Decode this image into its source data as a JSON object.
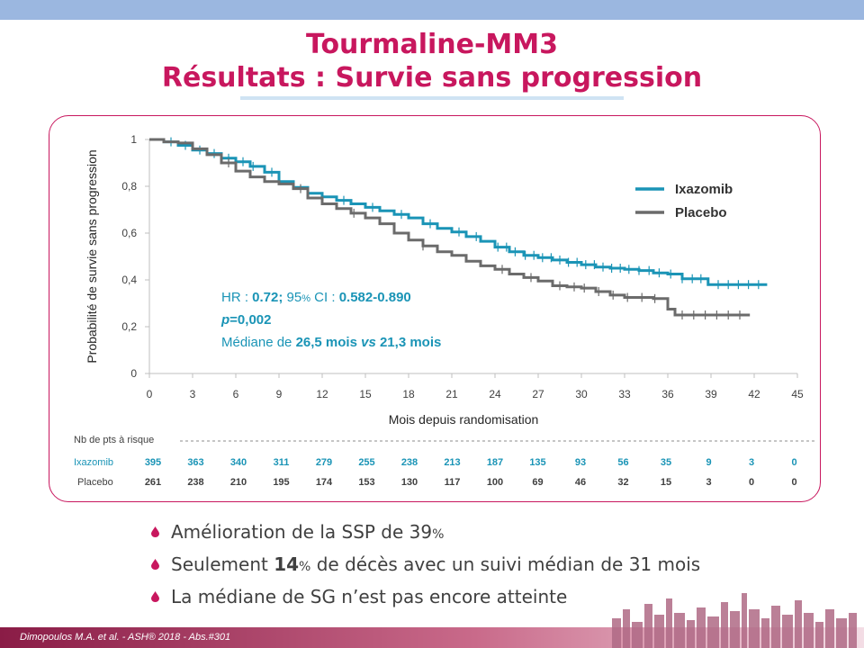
{
  "header": {
    "title_line1": "Tourmaline-MM3",
    "title_line2": "Résultats : Survie sans progression"
  },
  "chart_data": {
    "type": "line",
    "subtype": "kaplan-meier",
    "xlabel": "Mois depuis randomisation",
    "ylabel": "Probabilité de survie sans progression",
    "xlim": [
      0,
      45
    ],
    "ylim": [
      0,
      1
    ],
    "xticks": [
      "0",
      "3",
      "6",
      "9",
      "12",
      "15",
      "18",
      "21",
      "24",
      "27",
      "30",
      "33",
      "36",
      "39",
      "42",
      "45"
    ],
    "yticks": [
      "0",
      "0,2",
      "0,4",
      "0,6",
      "0,8",
      "1"
    ],
    "legend_position": "top-right",
    "series": [
      {
        "name": "Ixazomib",
        "color": "#1a94b6",
        "points": [
          [
            0,
            1.0
          ],
          [
            1,
            0.99
          ],
          [
            2,
            0.975
          ],
          [
            3,
            0.955
          ],
          [
            4,
            0.94
          ],
          [
            5,
            0.92
          ],
          [
            6,
            0.905
          ],
          [
            7,
            0.885
          ],
          [
            8,
            0.86
          ],
          [
            9,
            0.82
          ],
          [
            10,
            0.795
          ],
          [
            11,
            0.77
          ],
          [
            12,
            0.755
          ],
          [
            13,
            0.74
          ],
          [
            14,
            0.725
          ],
          [
            15,
            0.71
          ],
          [
            16,
            0.695
          ],
          [
            17,
            0.68
          ],
          [
            18,
            0.665
          ],
          [
            19,
            0.64
          ],
          [
            20,
            0.62
          ],
          [
            21,
            0.605
          ],
          [
            22,
            0.585
          ],
          [
            23,
            0.565
          ],
          [
            24,
            0.54
          ],
          [
            25,
            0.52
          ],
          [
            26,
            0.505
          ],
          [
            27,
            0.495
          ],
          [
            28,
            0.485
          ],
          [
            29,
            0.475
          ],
          [
            30,
            0.465
          ],
          [
            31,
            0.455
          ],
          [
            32,
            0.45
          ],
          [
            33,
            0.445
          ],
          [
            34,
            0.44
          ],
          [
            35,
            0.43
          ],
          [
            36,
            0.425
          ],
          [
            37,
            0.405
          ],
          [
            38,
            0.405
          ],
          [
            38.8,
            0.38
          ],
          [
            42.9,
            0.38
          ]
        ],
        "censor_x": [
          1.5,
          2.5,
          3.5,
          4.5,
          5.5,
          6.5,
          7.2,
          8.5,
          11,
          13.5,
          15.5,
          17.5,
          19.5,
          21.5,
          22.7,
          24.2,
          24.8,
          25.4,
          26.1,
          26.7,
          27.3,
          27.9,
          28.5,
          29.1,
          29.7,
          30.3,
          30.9,
          31.5,
          32.1,
          32.7,
          33.3,
          34,
          34.7,
          35.4,
          36.2,
          37,
          37.7,
          38.3,
          39.5,
          40.2,
          40.9,
          41.6,
          42.3
        ]
      },
      {
        "name": "Placebo",
        "color": "#6b6b6b",
        "points": [
          [
            0,
            1.0
          ],
          [
            1,
            0.99
          ],
          [
            2,
            0.985
          ],
          [
            3,
            0.96
          ],
          [
            4,
            0.935
          ],
          [
            5,
            0.9
          ],
          [
            6,
            0.865
          ],
          [
            7,
            0.84
          ],
          [
            8,
            0.82
          ],
          [
            9,
            0.81
          ],
          [
            10,
            0.79
          ],
          [
            11,
            0.75
          ],
          [
            12,
            0.725
          ],
          [
            13,
            0.705
          ],
          [
            14,
            0.685
          ],
          [
            15,
            0.665
          ],
          [
            16,
            0.64
          ],
          [
            17,
            0.6
          ],
          [
            18,
            0.57
          ],
          [
            19,
            0.545
          ],
          [
            20,
            0.52
          ],
          [
            21,
            0.505
          ],
          [
            22,
            0.48
          ],
          [
            23,
            0.46
          ],
          [
            24,
            0.445
          ],
          [
            25,
            0.425
          ],
          [
            26,
            0.41
          ],
          [
            27,
            0.395
          ],
          [
            28,
            0.375
          ],
          [
            29,
            0.37
          ],
          [
            30,
            0.365
          ],
          [
            31,
            0.35
          ],
          [
            32,
            0.335
          ],
          [
            33,
            0.325
          ],
          [
            34,
            0.325
          ],
          [
            35,
            0.32
          ],
          [
            36,
            0.275
          ],
          [
            36.5,
            0.25
          ],
          [
            41.7,
            0.25
          ]
        ],
        "censor_x": [
          5.5,
          10.5,
          14.2,
          19,
          24.5,
          26.5,
          28.5,
          29.5,
          30.2,
          31.2,
          32.2,
          33.2,
          34.2,
          35.1,
          37,
          37.8,
          38.6,
          39.4,
          40.2,
          41
        ]
      }
    ],
    "annotation": {
      "hr_prefix": "HR : ",
      "hr_value": "0.72;",
      "ci_prefix": " 95",
      "ci_pct": "%",
      "ci_label": " CI : ",
      "ci_value": "0.582-0.890",
      "p_label": "p",
      "p_value": "=0,002",
      "median_prefix": "Médiane de ",
      "median_ixa": "26,5 mois",
      "median_vs": " vs ",
      "median_pbo": "21,3 mois"
    },
    "risk_table": {
      "title": "Nb de pts à risque",
      "rows": [
        {
          "label": "Ixazomib",
          "values": [
            "395",
            "363",
            "340",
            "311",
            "279",
            "255",
            "238",
            "213",
            "187",
            "135",
            "93",
            "56",
            "35",
            "9",
            "3",
            "0"
          ]
        },
        {
          "label": "Placebo",
          "values": [
            "261",
            "238",
            "210",
            "195",
            "174",
            "153",
            "130",
            "117",
            "100",
            "69",
            "46",
            "32",
            "15",
            "3",
            "0",
            "0"
          ]
        }
      ]
    }
  },
  "bullets": {
    "b1_text": "Amélioration de la SSP de 39",
    "b1_pct": "%",
    "b2_prefix": "Seulement ",
    "b2_bold": "14",
    "b2_pct": "%",
    "b2_suffix": " de décès avec un suivi médian de 31 mois",
    "b3_text": "La médiane de SG n’est pas encore atteinte"
  },
  "footer": {
    "text": "Dimopoulos M.A. et al. - ASH® 2018  - Abs.#301"
  },
  "colors": {
    "accent": "#c8175e",
    "ixazomib": "#1a94b6",
    "placebo": "#6b6b6b"
  }
}
